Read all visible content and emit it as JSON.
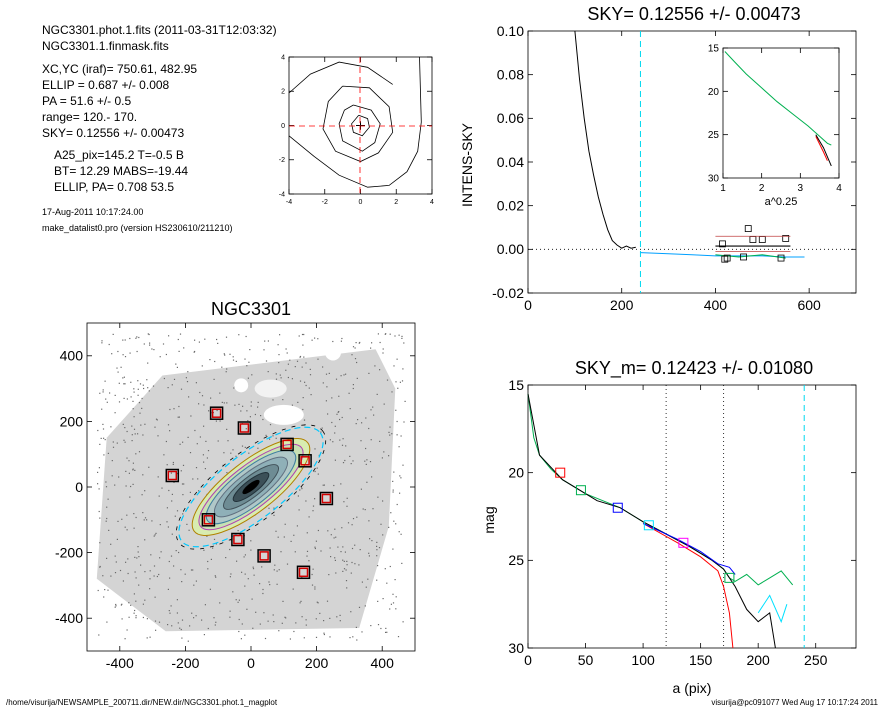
{
  "header": {
    "lines": [
      "NGC3301.phot.1.fits  (2011-03-31T12:03:32)",
      "NGC3301.1.finmask.fits",
      "XC,YC (iraf)=   750.61, 482.95",
      "ELLIP = 0.687 +/- 0.008",
      "PA    = 51.6 +/-   0.5",
      "range=  120.-  170.",
      "SKY= 0.12556 +/- 0.00473",
      "A25_pix=145.2   T=-0.5  B",
      "BT=  12.29   MABS=-19.44",
      "ELLIP, PA= 0.708    53.5",
      "17-Aug-2011 10:17:24.00",
      "make_datalist0.pro (version HS230610/211210)"
    ]
  },
  "footer": {
    "path": "/home/visurija/NEWSAMPLE_200711.dir/NEW.dir/NGC3301.phot.1_magplot",
    "user_date": "visurija@pc091077  Wed Aug 17 10:17:24 2011"
  },
  "chart_data": [
    {
      "id": "contour",
      "type": "line",
      "xlim": [
        -4,
        4
      ],
      "ylim": [
        -4,
        4
      ],
      "xticks": [
        "-4",
        "-2",
        "0",
        "2",
        "4"
      ],
      "yticks": [
        "-4",
        "-2",
        "0",
        "2",
        "4"
      ],
      "series": [
        {
          "x": [
            -0.1,
            0.4,
            0.5,
            0.1,
            -0.4,
            -0.5,
            -0.1
          ],
          "y": [
            0.6,
            0.4,
            -0.1,
            -0.6,
            -0.4,
            0.1,
            0.6
          ]
        },
        {
          "x": [
            -0.4,
            0.6,
            1.1,
            0.8,
            0.1,
            -1.0,
            -1.2,
            -0.9,
            -0.4
          ],
          "y": [
            1.2,
            0.9,
            0.1,
            -1.0,
            -1.5,
            -0.9,
            0.1,
            0.9,
            1.2
          ]
        },
        {
          "x": [
            -1.0,
            0.5,
            1.6,
            1.8,
            1.0,
            0,
            -1.4,
            -2.1,
            -1.8,
            -1.0
          ],
          "y": [
            2.3,
            2.2,
            1.1,
            -0.4,
            -1.6,
            -2.1,
            -1.5,
            -0.2,
            1.4,
            2.3
          ]
        },
        {
          "x": [
            -4,
            -2.8,
            -1.2,
            0.4,
            1.8
          ],
          "y": [
            1.9,
            3.0,
            3.7,
            3.4,
            2.4
          ]
        },
        {
          "x": [
            -4,
            -2.6,
            -1.2,
            0.4,
            1.6,
            2.6,
            3.2,
            3.4,
            3.3
          ],
          "y": [
            -0.6,
            -1.8,
            -2.9,
            -3.6,
            -3.5,
            -2.7,
            -1.5,
            0.2,
            4
          ]
        }
      ]
    },
    {
      "id": "sky_profile",
      "type": "line",
      "title": "SKY= 0.12556 +/- 0.00473",
      "ylabel": "INTENS-SKY",
      "xlim": [
        0,
        700
      ],
      "ylim": [
        -0.02,
        0.1
      ],
      "xticks": [
        "0",
        "200",
        "400",
        "600"
      ],
      "yticks": [
        "-0.02",
        "0.00",
        "0.02",
        "0.04",
        "0.06",
        "0.08",
        "0.10"
      ],
      "series": [
        {
          "color": "#000000",
          "x": [
            100,
            110,
            120,
            130,
            140,
            150,
            160,
            170,
            180,
            190,
            200,
            210,
            220,
            230
          ],
          "y": [
            0.1,
            0.078,
            0.06,
            0.045,
            0.034,
            0.024,
            0.016,
            0.009,
            0.004,
            0.002,
            0.0005,
            0.0015,
            0.0005,
            0.001
          ]
        },
        {
          "color": "#00a0ff",
          "x": [
            240,
            300,
            350,
            400,
            450,
            500,
            550,
            590
          ],
          "y": [
            -0.0015,
            -0.002,
            -0.0025,
            -0.003,
            -0.003,
            -0.003,
            -0.0035,
            -0.0035
          ]
        },
        {
          "color": "#00b050",
          "x": [
            400,
            450,
            500,
            550
          ],
          "y": [
            -0.0025,
            -0.0035,
            -0.0025,
            -0.004
          ]
        }
      ],
      "boxes": {
        "x": [
          415,
          420,
          425,
          470,
          480,
          500,
          540,
          550,
          460
        ],
        "y": [
          0.0025,
          -0.0045,
          -0.004,
          0.0095,
          0.0045,
          0.0045,
          -0.004,
          0.005,
          -0.0035
        ]
      },
      "hline_y": 0,
      "vline_x": 240,
      "inset": {
        "xlabel": "a^0.25",
        "xlim": [
          1,
          4
        ],
        "ylim": [
          15,
          30
        ],
        "xticks": [
          "1",
          "2",
          "3",
          "4"
        ],
        "yticks": [
          "15",
          "20",
          "25",
          "30"
        ],
        "series": [
          {
            "color": "#00b050",
            "x": [
              1.05,
              1.3,
              1.6,
              2.0,
              2.4,
              2.8,
              3.2,
              3.5,
              3.7,
              3.8
            ],
            "y": [
              15.4,
              16.6,
              18.0,
              19.6,
              21.2,
              22.6,
              24.0,
              25.2,
              26.0,
              26.2
            ]
          },
          {
            "color": "#ff0000",
            "x": [
              3.4,
              3.6,
              3.7
            ],
            "y": [
              25.2,
              27.0,
              28.0
            ]
          },
          {
            "color": "#000000",
            "x": [
              3.4,
              3.6,
              3.8
            ],
            "y": [
              25.0,
              26.5,
              28.6
            ]
          }
        ]
      }
    },
    {
      "id": "image",
      "type": "scatter",
      "title": "NGC3301",
      "xlim": [
        -500,
        500
      ],
      "ylim": [
        -500,
        500
      ],
      "xticks": [
        "-400",
        "-200",
        "0",
        "200",
        "400"
      ],
      "yticks": [
        "-400",
        "-200",
        "0",
        "200",
        "400"
      ],
      "markers": {
        "x": [
          -105,
          -240,
          -20,
          110,
          165,
          230,
          -130,
          -40,
          40,
          160
        ],
        "y": [
          225,
          35,
          180,
          130,
          80,
          -35,
          -100,
          -160,
          -210,
          -260
        ]
      }
    },
    {
      "id": "mag_profile",
      "type": "line",
      "title": "SKY_m=  0.12423 +/- 0.01080",
      "xlabel": "a (pix)",
      "ylabel": "mag",
      "xlim": [
        0,
        285
      ],
      "ylim": [
        15,
        30
      ],
      "xticks": [
        "0",
        "50",
        "100",
        "150",
        "200",
        "250"
      ],
      "yticks": [
        "15",
        "20",
        "25",
        "30"
      ],
      "vlines_dotted": [
        120,
        170
      ],
      "vline_dashed": 240,
      "series": [
        {
          "color": "#00b050",
          "x": [
            0,
            5,
            10,
            20,
            30,
            50,
            80,
            100,
            120,
            140,
            160,
            170,
            175,
            180,
            190,
            200,
            210,
            220,
            230
          ],
          "y": [
            15.5,
            18.0,
            19.0,
            19.8,
            20.4,
            21.2,
            22.0,
            22.8,
            23.5,
            24.2,
            25.0,
            25.5,
            26.0,
            26.2,
            25.8,
            26.4,
            26.0,
            25.6,
            26.4
          ]
        },
        {
          "color": "#000000",
          "x": [
            0,
            10,
            30,
            60,
            80,
            100,
            120,
            140,
            160,
            170,
            180,
            190,
            200,
            210,
            215
          ],
          "y": [
            15.5,
            19.0,
            20.4,
            21.6,
            22.0,
            22.8,
            23.5,
            24.2,
            25.0,
            25.5,
            26.5,
            27.8,
            28.5,
            28.0,
            30
          ]
        },
        {
          "color": "#ff0000",
          "x": [
            100,
            130,
            150,
            165,
            170,
            175,
            178
          ],
          "y": [
            22.9,
            24.0,
            24.8,
            25.6,
            26.5,
            28.0,
            30
          ]
        },
        {
          "color": "#0000ff",
          "x": [
            100,
            130,
            150,
            165,
            175,
            180
          ],
          "y": [
            22.9,
            23.8,
            24.5,
            25.2,
            25.4,
            25.8
          ]
        },
        {
          "color": "#00e0ff",
          "x": [
            200,
            210,
            220,
            225
          ],
          "y": [
            28.0,
            27.0,
            28.5,
            27.5
          ]
        }
      ],
      "boxes": [
        {
          "x": 28,
          "y": 20.0,
          "color": "#ff0000"
        },
        {
          "x": 46,
          "y": 21.0,
          "color": "#00b050"
        },
        {
          "x": 78,
          "y": 22.0,
          "color": "#0000ff"
        },
        {
          "x": 105,
          "y": 23.0,
          "color": "#00e0ff"
        },
        {
          "x": 135,
          "y": 24.0,
          "color": "#ff00ff"
        },
        {
          "x": 175,
          "y": 26.0,
          "color": "#00b050"
        }
      ]
    }
  ]
}
